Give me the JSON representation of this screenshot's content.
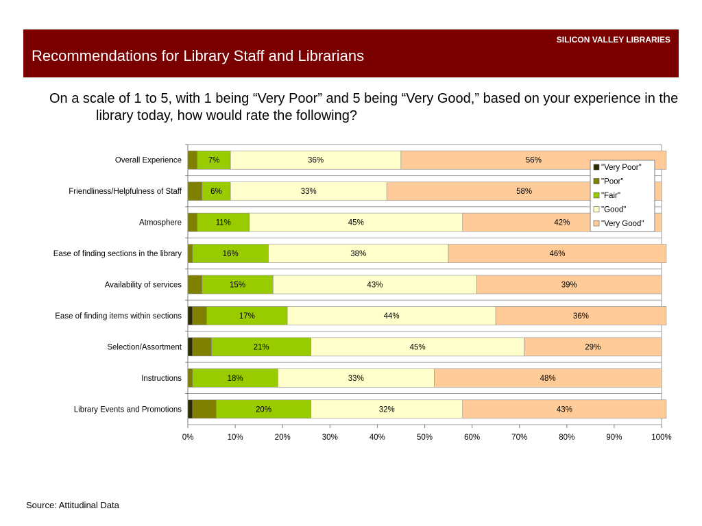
{
  "header": {
    "brand": "SILICON VALLEY LIBRARIES",
    "title": "Recommendations for Library Staff and Librarians",
    "bg_color": "#7a0000"
  },
  "question": "On a scale of 1 to 5, with 1 being “Very Poor” and 5 being “Very Good,” based on your experience in the library today, how would rate the following?",
  "source": "Source: Attitudinal Data",
  "chart_data": {
    "type": "bar",
    "orientation": "horizontal",
    "stacked": true,
    "categories": [
      "Overall Experience",
      "Friendliness/Helpfulness of Staff",
      "Atmosphere",
      "Ease of finding sections in the library",
      "Availability of services",
      "Ease of finding items within sections",
      "Selection/Assortment",
      "Instructions",
      "Library Events and Promotions"
    ],
    "series": [
      {
        "name": "\"Very Poor\"",
        "color": "#2b2b00",
        "values": [
          0,
          0,
          0,
          0,
          0,
          1,
          1,
          0,
          1
        ]
      },
      {
        "name": "\"Poor\"",
        "color": "#7f7f00",
        "values": [
          2,
          3,
          2,
          1,
          3,
          3,
          4,
          1,
          5
        ]
      },
      {
        "name": "\"Fair\"",
        "color": "#99cc00",
        "values": [
          7,
          6,
          11,
          16,
          15,
          17,
          21,
          18,
          20
        ]
      },
      {
        "name": "\"Good\"",
        "color": "#ffffcc",
        "values": [
          36,
          33,
          45,
          38,
          43,
          44,
          45,
          33,
          32
        ]
      },
      {
        "name": "\"Very Good\"",
        "color": "#ffcc99",
        "values": [
          56,
          58,
          42,
          46,
          39,
          36,
          29,
          48,
          43
        ]
      }
    ],
    "data_labels": [
      [
        "",
        "",
        "7%",
        "36%",
        "56%"
      ],
      [
        "",
        "",
        "6%",
        "33%",
        "58%"
      ],
      [
        "",
        "",
        "11%",
        "45%",
        "42%"
      ],
      [
        "",
        "",
        "16%",
        "38%",
        "46%"
      ],
      [
        "",
        "",
        "15%",
        "43%",
        "39%"
      ],
      [
        "",
        "",
        "17%",
        "44%",
        "36%"
      ],
      [
        "",
        "",
        "21%",
        "45%",
        "29%"
      ],
      [
        "",
        "",
        "18%",
        "33%",
        "48%"
      ],
      [
        "",
        "",
        "20%",
        "32%",
        "43%"
      ]
    ],
    "x_ticks": [
      "0%",
      "10%",
      "20%",
      "30%",
      "40%",
      "50%",
      "60%",
      "70%",
      "80%",
      "90%",
      "100%"
    ],
    "xlim": [
      0,
      100
    ],
    "grid": false,
    "legend_position": "top-right"
  }
}
